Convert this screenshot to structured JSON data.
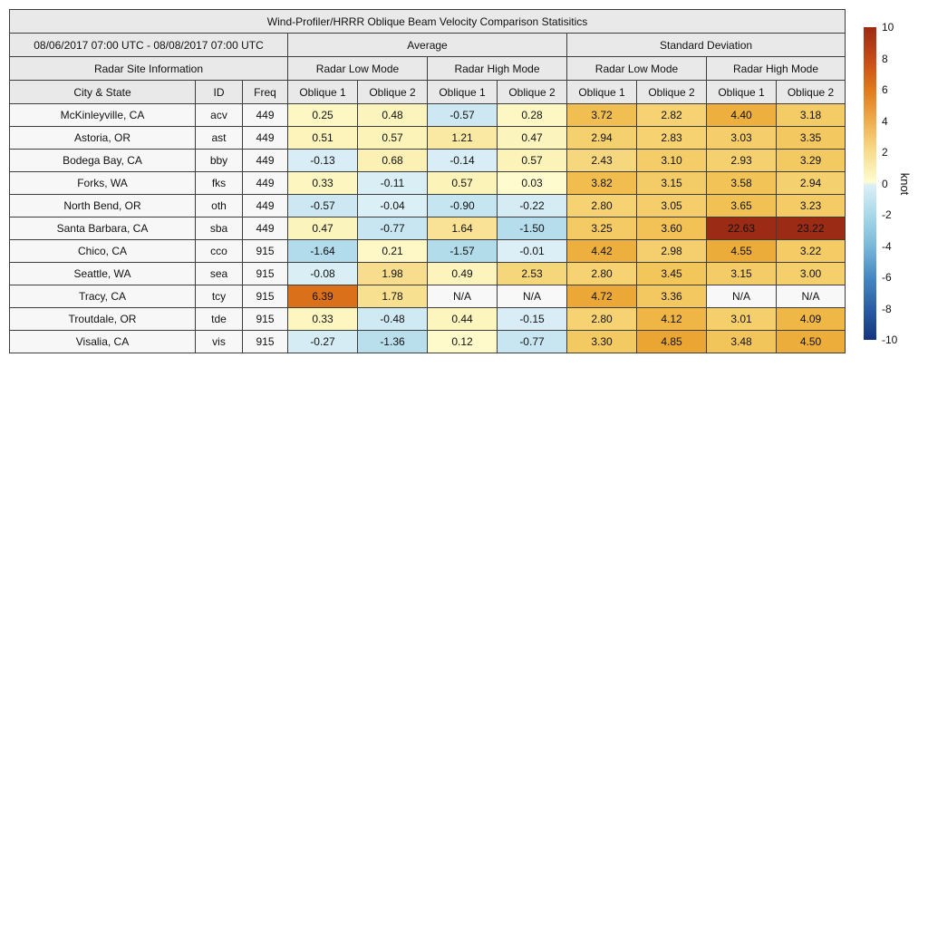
{
  "table": {
    "title": "Wind-Profiler/HRRR Oblique Beam Velocity Comparison Statisitics",
    "period": "08/06/2017 07:00 UTC - 08/08/2017 07:00 UTC",
    "groups": {
      "average": "Average",
      "std": "Standard Deviation",
      "site_info": "Radar Site Information",
      "low_mode": "Radar Low Mode",
      "high_mode": "Radar High Mode"
    },
    "columns": {
      "city": "City & State",
      "id": "ID",
      "freq": "Freq",
      "oblique1": "Oblique 1",
      "oblique2": "Oblique 2"
    },
    "rows": [
      {
        "city": "McKinleyville, CA",
        "id": "acv",
        "freq": "449",
        "values": [
          "0.25",
          "0.48",
          "-0.57",
          "0.28",
          "3.72",
          "2.82",
          "4.40",
          "3.18"
        ],
        "colors": [
          "#FDF7C4",
          "#FCF4BD",
          "#CDE8F2",
          "#FDF7C3",
          "#F1BF51",
          "#F6D272",
          "#EDB03E",
          "#F4CC66"
        ]
      },
      {
        "city": "Astoria, OR",
        "id": "ast",
        "freq": "449",
        "values": [
          "0.51",
          "0.57",
          "1.21",
          "0.47",
          "2.94",
          "2.83",
          "3.03",
          "3.35"
        ],
        "colors": [
          "#FCF4BB",
          "#FCF3B9",
          "#FAE9A2",
          "#FCF4BD",
          "#F5D06E",
          "#F6D271",
          "#F5CE6B",
          "#F3C860"
        ]
      },
      {
        "city": "Bodega Bay, CA",
        "id": "bby",
        "freq": "449",
        "values": [
          "-0.13",
          "0.68",
          "-0.14",
          "0.57",
          "2.43",
          "3.10",
          "2.93",
          "3.29"
        ],
        "colors": [
          "#D8EDF5",
          "#FBF1B4",
          "#D8EDF5",
          "#FCF3B9",
          "#F7D77E",
          "#F4CD69",
          "#F5D06E",
          "#F3C962"
        ]
      },
      {
        "city": "Forks, WA",
        "id": "fks",
        "freq": "449",
        "values": [
          "0.33",
          "-0.11",
          "0.57",
          "0.03",
          "3.82",
          "3.15",
          "3.58",
          "2.94"
        ],
        "colors": [
          "#FDF6C1",
          "#D9EEF5",
          "#FCF3B9",
          "#FEFBCE",
          "#F0BD4E",
          "#F4CC67",
          "#F2C357",
          "#F5D06E"
        ]
      },
      {
        "city": "North Bend, OR",
        "id": "oth",
        "freq": "449",
        "values": [
          "-0.57",
          "-0.04",
          "-0.90",
          "-0.22",
          "2.80",
          "3.05",
          "3.65",
          "3.23"
        ],
        "colors": [
          "#CDE8F2",
          "#DBEFF6",
          "#C5E5F0",
          "#D6ECF5",
          "#F6D272",
          "#F5CE6B",
          "#F1C154",
          "#F4CB64"
        ]
      },
      {
        "city": "Santa Barbara, CA",
        "id": "sba",
        "freq": "449",
        "values": [
          "0.47",
          "-0.77",
          "1.64",
          "-1.50",
          "3.25",
          "3.60",
          "22.63",
          "23.22"
        ],
        "colors": [
          "#FCF4BD",
          "#C8E6F1",
          "#F9E295",
          "#B5DDEC",
          "#F4CA64",
          "#F2C256",
          "#9C2B15",
          "#9C2B15"
        ]
      },
      {
        "city": "Chico, CA",
        "id": "cco",
        "freq": "915",
        "values": [
          "-1.64",
          "0.21",
          "-1.57",
          "-0.01",
          "4.42",
          "2.98",
          "4.55",
          "3.22"
        ],
        "colors": [
          "#B2DCEB",
          "#FDF8C6",
          "#B3DCEB",
          "#DCEFF6",
          "#EDB03E",
          "#F5CF6D",
          "#ECAC3A",
          "#F4CB65"
        ]
      },
      {
        "city": "Seattle, WA",
        "id": "sea",
        "freq": "915",
        "values": [
          "-0.08",
          "1.98",
          "0.49",
          "2.53",
          "2.80",
          "3.45",
          "3.15",
          "3.00"
        ],
        "colors": [
          "#DAEEF5",
          "#F8DD8E",
          "#FCF4BC",
          "#F6D67B",
          "#F6D272",
          "#F3C65C",
          "#F4CC67",
          "#F5CF6C"
        ]
      },
      {
        "city": "Tracy, CA",
        "id": "tcy",
        "freq": "915",
        "values": [
          "6.39",
          "1.78",
          "N/A",
          "N/A",
          "4.72",
          "3.36",
          "N/A",
          "N/A"
        ],
        "colors": [
          "#DB701B",
          "#F8E091",
          "#F8F8F8",
          "#F8F8F8",
          "#EBA836",
          "#F3C860",
          "#F8F8F8",
          "#F8F8F8"
        ]
      },
      {
        "city": "Troutdale, OR",
        "id": "tde",
        "freq": "915",
        "values": [
          "0.33",
          "-0.48",
          "0.44",
          "-0.15",
          "2.80",
          "4.12",
          "3.01",
          "4.09"
        ],
        "colors": [
          "#FDF6C1",
          "#D0EAF3",
          "#FCF5BE",
          "#D8EDF5",
          "#F6D272",
          "#EFB645",
          "#F5CF6C",
          "#EFB746"
        ]
      },
      {
        "city": "Visalia, CA",
        "id": "vis",
        "freq": "915",
        "values": [
          "-0.27",
          "-1.36",
          "0.12",
          "-0.77",
          "3.30",
          "4.85",
          "3.48",
          "4.50"
        ],
        "colors": [
          "#D5ECF4",
          "#B9DFED",
          "#FEFACA",
          "#C8E6F1",
          "#F3C962",
          "#EAA532",
          "#F2C55B",
          "#ECAD3B"
        ]
      }
    ]
  },
  "colorbar": {
    "label": "knot",
    "ticks": [
      "10",
      "8",
      "6",
      "4",
      "2",
      "0",
      "-2",
      "-4",
      "-6",
      "-8",
      "-10"
    ],
    "gradient_stops": [
      {
        "p": 0,
        "c": "#9C2B15"
      },
      {
        "p": 10,
        "c": "#C54A18"
      },
      {
        "p": 20,
        "c": "#E0791C"
      },
      {
        "p": 30,
        "c": "#EEAD4D"
      },
      {
        "p": 40,
        "c": "#F8DD8D"
      },
      {
        "p": 49.5,
        "c": "#FEFCD1"
      },
      {
        "p": 50.5,
        "c": "#DCEFF6"
      },
      {
        "p": 60,
        "c": "#A9D8E9"
      },
      {
        "p": 70,
        "c": "#7AB8D9"
      },
      {
        "p": 80,
        "c": "#4689C1"
      },
      {
        "p": 90,
        "c": "#2B5EA4"
      },
      {
        "p": 100,
        "c": "#163480"
      }
    ]
  },
  "chart_data": {
    "type": "table",
    "title": "Wind-Profiler/HRRR Oblique Beam Velocity Comparison Statisitics",
    "period": "08/06/2017 07:00 UTC - 08/08/2017 07:00 UTC",
    "columns": [
      "City & State",
      "ID",
      "Freq",
      "Average Radar Low Mode Oblique 1",
      "Average Radar Low Mode Oblique 2",
      "Average Radar High Mode Oblique 1",
      "Average Radar High Mode Oblique 2",
      "Standard Deviation Radar Low Mode Oblique 1",
      "Standard Deviation Radar Low Mode Oblique 2",
      "Standard Deviation Radar High Mode Oblique 1",
      "Standard Deviation Radar High Mode Oblique 2"
    ],
    "rows": [
      [
        "McKinleyville, CA",
        "acv",
        449,
        0.25,
        0.48,
        -0.57,
        0.28,
        3.72,
        2.82,
        4.4,
        3.18
      ],
      [
        "Astoria, OR",
        "ast",
        449,
        0.51,
        0.57,
        1.21,
        0.47,
        2.94,
        2.83,
        3.03,
        3.35
      ],
      [
        "Bodega Bay, CA",
        "bby",
        449,
        -0.13,
        0.68,
        -0.14,
        0.57,
        2.43,
        3.1,
        2.93,
        3.29
      ],
      [
        "Forks, WA",
        "fks",
        449,
        0.33,
        -0.11,
        0.57,
        0.03,
        3.82,
        3.15,
        3.58,
        2.94
      ],
      [
        "North Bend, OR",
        "oth",
        449,
        -0.57,
        -0.04,
        -0.9,
        -0.22,
        2.8,
        3.05,
        3.65,
        3.23
      ],
      [
        "Santa Barbara, CA",
        "sba",
        449,
        0.47,
        -0.77,
        1.64,
        -1.5,
        3.25,
        3.6,
        22.63,
        23.22
      ],
      [
        "Chico, CA",
        "cco",
        915,
        -1.64,
        0.21,
        -1.57,
        -0.01,
        4.42,
        2.98,
        4.55,
        3.22
      ],
      [
        "Seattle, WA",
        "sea",
        915,
        -0.08,
        1.98,
        0.49,
        2.53,
        2.8,
        3.45,
        3.15,
        3.0
      ],
      [
        "Tracy, CA",
        "tcy",
        915,
        6.39,
        1.78,
        null,
        null,
        4.72,
        3.36,
        null,
        null
      ],
      [
        "Troutdale, OR",
        "tde",
        915,
        0.33,
        -0.48,
        0.44,
        -0.15,
        2.8,
        4.12,
        3.01,
        4.09
      ],
      [
        "Visalia, CA",
        "vis",
        915,
        -0.27,
        -1.36,
        0.12,
        -0.77,
        3.3,
        4.85,
        3.48,
        4.5
      ]
    ],
    "colorbar": {
      "label": "knot",
      "range": [
        -10,
        10
      ],
      "tick_step": 2
    },
    "colormap": "diverging blue-cream-orange-red"
  }
}
